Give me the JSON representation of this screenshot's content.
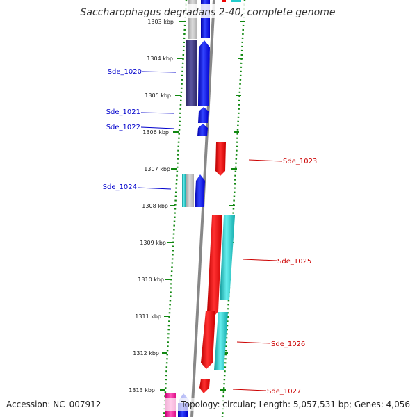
{
  "title": "Saccharophagus degradans 2-40, complete genome",
  "footer": {
    "accession": "Accession: NC_007912",
    "summary": "Topology: circular; Length: 5,057,531 bp; Genes: 4,056"
  },
  "ticks": [
    "1303 kbp",
    "1304 kbp",
    "1305 kbp",
    "1306 kbp",
    "1307 kbp",
    "1308 kbp",
    "1309 kbp",
    "1310 kbp",
    "1311 kbp",
    "1312 kbp",
    "1313 kbp"
  ],
  "gene_labels": {
    "left": [
      "Sde_1020",
      "Sde_1021",
      "Sde_1022",
      "Sde_1024"
    ],
    "right": [
      "Sde_1023",
      "Sde_1025",
      "Sde_1026",
      "Sde_1027"
    ]
  },
  "colors": {
    "forward_cds": "#0000ee",
    "reverse_cds": "#ee0000",
    "forward_label": "#0000cc",
    "reverse_label": "#cc0000",
    "backbone": "#888888",
    "tick": "#118811",
    "cyan_feature": "#22cccc",
    "dark_feature": "#443f7a",
    "pink_feature": "#ee1199"
  }
}
